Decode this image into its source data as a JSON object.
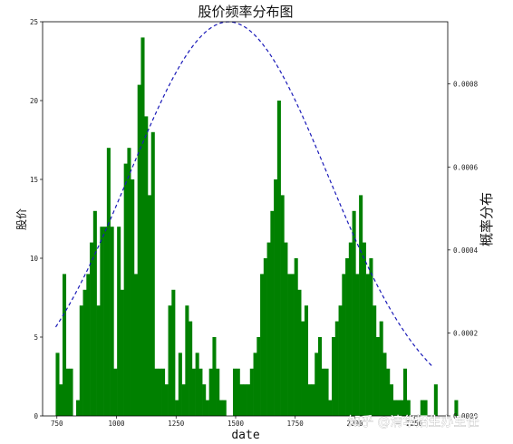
{
  "chart_data": {
    "type": "bar",
    "title": "股价频率分布图",
    "xlabel": "date",
    "ylabel": "股价",
    "y2label": "概率分布",
    "xlim": [
      690,
      2390
    ],
    "ylim": [
      0,
      25
    ],
    "y2lim": [
      0,
      0.00095
    ],
    "xticks": [
      750,
      1000,
      1250,
      1500,
      1750,
      2000,
      2250
    ],
    "yticks": [
      0,
      5,
      10,
      15,
      20,
      25
    ],
    "y2ticks": [
      0.0,
      0.0002,
      0.0004,
      0.0006,
      0.0008
    ],
    "y2tick_labels": [
      "0.0000",
      "0.0002",
      "0.0004",
      "0.0006",
      "0.0008"
    ],
    "bar_color": "#008000",
    "histogram": {
      "bin_start": 745,
      "bin_width": 14.3,
      "counts": [
        4,
        2,
        9,
        3,
        3,
        0,
        1,
        7,
        8,
        9,
        11,
        13,
        7,
        12,
        12,
        17,
        12,
        3,
        12,
        8,
        16,
        17,
        15,
        9,
        21,
        24,
        19,
        14,
        18,
        3,
        3,
        3,
        2,
        7,
        8,
        1,
        4,
        2,
        7,
        6,
        3,
        4,
        3,
        2,
        1,
        3,
        5,
        3,
        1,
        1,
        0,
        0,
        3,
        3,
        2,
        2,
        2,
        3,
        4,
        5,
        9,
        10,
        11,
        13,
        15,
        20,
        14,
        11,
        9,
        9,
        10,
        8,
        6,
        7,
        2,
        2,
        4,
        5,
        3,
        3,
        1,
        5,
        6,
        7,
        9,
        10,
        11,
        13,
        9,
        14,
        11,
        9,
        10,
        7,
        5,
        6,
        4,
        3,
        2,
        1,
        1,
        1,
        3,
        1,
        0,
        0,
        0,
        1,
        1,
        0,
        0,
        2,
        0,
        0,
        0,
        0,
        0,
        1,
        0,
        0
      ]
    },
    "normal_curve": {
      "color": "#1a1ab8",
      "style": "dashed",
      "mean": 1470,
      "std": 420,
      "x_range": [
        745,
        2330
      ]
    },
    "watermark": "知乎 @清华招生办主任"
  }
}
